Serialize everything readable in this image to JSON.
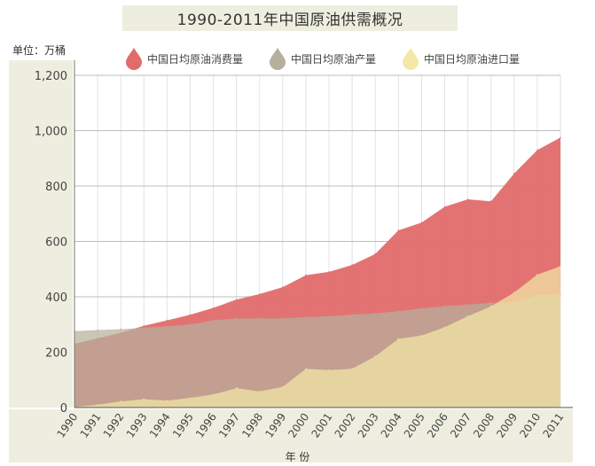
{
  "title": "1990-2011年中国原油供需概况",
  "unit_label": "单位：万桶",
  "chart_data": {
    "type": "area",
    "title": "1990-2011年中国原油供需概况",
    "xlabel": "年 份",
    "ylabel": "单位：万桶",
    "x": [
      "1990",
      "1991",
      "1992",
      "1993",
      "1994",
      "1995",
      "1996",
      "1997",
      "1998",
      "1999",
      "2000",
      "2001",
      "2002",
      "2003",
      "2004",
      "2005",
      "2006",
      "2007",
      "2008",
      "2009",
      "2010",
      "2011"
    ],
    "ylim": [
      0,
      1200
    ],
    "yticks": [
      "0",
      "200",
      "400",
      "600",
      "800",
      "1,000",
      "1,200"
    ],
    "grid": true,
    "legend_position": "top",
    "series": [
      {
        "name": "中国日均原油消费量",
        "color": "#e26b6b",
        "values": [
          230,
          250,
          270,
          295,
          315,
          335,
          360,
          390,
          410,
          435,
          478,
          490,
          515,
          555,
          640,
          668,
          725,
          752,
          745,
          845,
          930,
          975
        ]
      },
      {
        "name": "中国日均原油产量",
        "color": "#b5b09d",
        "values": [
          276,
          280,
          283,
          288,
          293,
          300,
          315,
          322,
          322,
          322,
          326,
          330,
          335,
          340,
          348,
          358,
          366,
          372,
          378,
          380,
          405,
          410
        ]
      },
      {
        "name": "中国日均原油进口量",
        "color": "#f3e9a6",
        "values": [
          2,
          10,
          22,
          30,
          25,
          35,
          47,
          70,
          58,
          75,
          140,
          135,
          140,
          185,
          248,
          260,
          290,
          330,
          365,
          415,
          480,
          510
        ]
      }
    ]
  }
}
